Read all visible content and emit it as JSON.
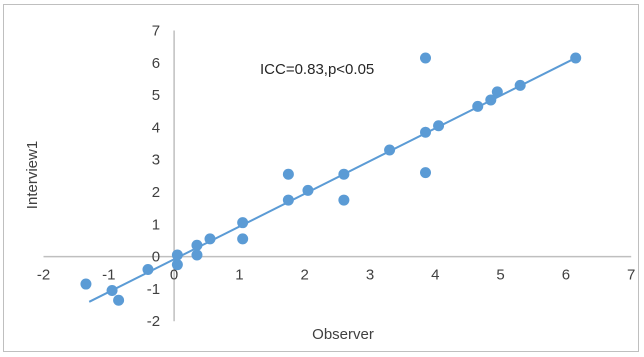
{
  "chart_data": {
    "type": "scatter",
    "title": "",
    "xlabel": "Observer",
    "ylabel": "Interview1",
    "xlim": [
      -2,
      7
    ],
    "ylim": [
      -2,
      7
    ],
    "x_ticks": [
      "-2",
      "-1",
      "0",
      "1",
      "2",
      "3",
      "4",
      "5",
      "6",
      "7"
    ],
    "y_ticks": [
      "-2",
      "-1",
      "0",
      "1",
      "2",
      "3",
      "4",
      "5",
      "6",
      "7"
    ],
    "grid": false,
    "legend": "none",
    "annotation": "ICC=0.83,p<0.05",
    "point_color": "#5b9bd5",
    "trendline_color": "#5b9bd5",
    "trendline": {
      "x": [
        -1.3,
        6.15
      ],
      "y": [
        -1.4,
        6.15
      ]
    },
    "series": [
      {
        "points": [
          [
            -1.35,
            -0.85
          ],
          [
            -0.95,
            -1.05
          ],
          [
            -0.85,
            -1.35
          ],
          [
            -0.4,
            -0.4
          ],
          [
            0.05,
            0.05
          ],
          [
            0.05,
            -0.25
          ],
          [
            0.35,
            0.35
          ],
          [
            0.35,
            0.05
          ],
          [
            0.55,
            0.55
          ],
          [
            1.05,
            1.05
          ],
          [
            1.05,
            0.55
          ],
          [
            1.75,
            2.55
          ],
          [
            1.75,
            1.75
          ],
          [
            2.05,
            2.05
          ],
          [
            2.6,
            2.55
          ],
          [
            2.6,
            1.75
          ],
          [
            3.3,
            3.3
          ],
          [
            3.85,
            6.15
          ],
          [
            3.85,
            3.85
          ],
          [
            3.85,
            2.6
          ],
          [
            4.05,
            4.05
          ],
          [
            4.65,
            4.65
          ],
          [
            4.85,
            4.85
          ],
          [
            4.95,
            5.1
          ],
          [
            5.3,
            5.3
          ],
          [
            6.15,
            6.15
          ]
        ]
      }
    ]
  }
}
